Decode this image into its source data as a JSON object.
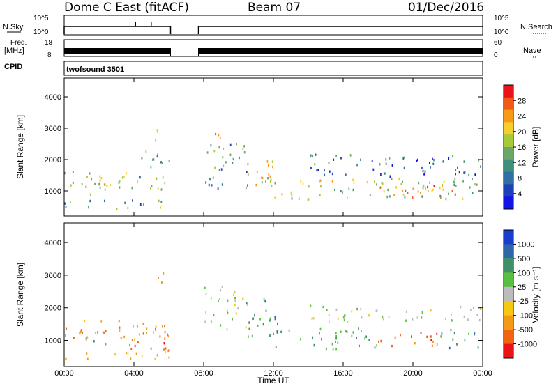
{
  "header": {
    "station": "Dome C East (fitACF)",
    "beam": "Beam 07",
    "date": "01/Dec/2016"
  },
  "noise_panel": {
    "left_label": "N.Sky",
    "right_label": "N.Search",
    "tick_top": "10^5",
    "tick_bottom": "10^0",
    "line_color": "#000000",
    "spikes_hours": [
      4.1,
      5.0
    ]
  },
  "freq_panel": {
    "label_top": "Freq.",
    "label_units": "[MHz]",
    "left_ticks": [
      "18",
      "8"
    ],
    "right_ticks": [
      "60",
      "0"
    ],
    "right_label": "Nave"
  },
  "cpid": {
    "label": "CPID",
    "value": "twofsound 3501"
  },
  "chart_data": [
    {
      "type": "heatmap",
      "parameter": "power",
      "ylabel": "Slant Range [km]",
      "ylim": [
        200,
        4600
      ],
      "yticks": [
        1000,
        2000,
        3000,
        4000
      ],
      "xlim": [
        0,
        24
      ],
      "xticks": [
        0,
        4,
        8,
        12,
        16,
        20,
        24
      ],
      "data_gap_hours": [
        6.1,
        7.7
      ],
      "colorbar": {
        "label": "Power [dB]",
        "ticks": [
          "28",
          "24",
          "20",
          "16",
          "12",
          "8",
          "4"
        ],
        "colors": [
          "#e8141a",
          "#f05a14",
          "#f79a18",
          "#f5cf2a",
          "#a8c93a",
          "#6aa86a",
          "#3f8f7a",
          "#2f6fa3",
          "#1f3fb8",
          "#1414e6"
        ]
      },
      "echo_regions": [
        {
          "t0": 0.0,
          "t1": 6.1,
          "r0": 1050,
          "r1": 1650,
          "level": 0.5
        },
        {
          "t0": 0.0,
          "t1": 6.1,
          "r0": 450,
          "r1": 750,
          "level": 0.4
        },
        {
          "t0": 0.8,
          "t1": 2.5,
          "r0": 800,
          "r1": 1300,
          "level": 0.65
        },
        {
          "t0": 4.0,
          "t1": 6.1,
          "r0": 1700,
          "r1": 2300,
          "level": 0.35
        },
        {
          "t0": 5.2,
          "t1": 5.7,
          "r0": 2400,
          "r1": 3200,
          "level": 0.75
        },
        {
          "t0": 8.0,
          "t1": 10.5,
          "r0": 1100,
          "r1": 2600,
          "level": 0.3
        },
        {
          "t0": 8.6,
          "t1": 9.1,
          "r0": 2300,
          "r1": 2900,
          "level": 0.8
        },
        {
          "t0": 10.3,
          "t1": 12.0,
          "r0": 1200,
          "r1": 2300,
          "level": 0.7
        },
        {
          "t0": 11.5,
          "t1": 24.0,
          "r0": 750,
          "r1": 1450,
          "level": 0.55
        },
        {
          "t0": 18.0,
          "t1": 22.5,
          "r0": 800,
          "r1": 1200,
          "level": 0.85
        },
        {
          "t0": 14.0,
          "t1": 24.0,
          "r0": 1500,
          "r1": 2200,
          "level": 0.2
        }
      ]
    },
    {
      "type": "heatmap",
      "parameter": "velocity",
      "ylabel": "Slant Range [km]",
      "xlabel": "Time UT",
      "ylim": [
        200,
        4600
      ],
      "yticks": [
        1000,
        2000,
        3000,
        4000
      ],
      "xlim": [
        0,
        24
      ],
      "xticks": [
        0,
        4,
        8,
        12,
        16,
        20,
        24
      ],
      "xtick_labels": [
        "00:00",
        "04:00",
        "08:00",
        "12:00",
        "16:00",
        "20:00",
        "00:00"
      ],
      "data_gap_hours": [
        6.1,
        7.7
      ],
      "colorbar": {
        "label": "Velocity [m s⁻¹]",
        "ticks": [
          "1000",
          "500",
          "100",
          "25",
          "-25",
          "-100",
          "-500",
          "-1000"
        ],
        "colors": [
          "#1a3ccf",
          "#2f66a8",
          "#3f8f6a",
          "#58c040",
          "#bcbcbc",
          "#f5c814",
          "#f59a14",
          "#f06414",
          "#e8141a"
        ]
      },
      "echo_regions": [
        {
          "t0": 0.0,
          "t1": 6.1,
          "r0": 1050,
          "r1": 1650,
          "level": -0.55
        },
        {
          "t0": 0.0,
          "t1": 6.1,
          "r0": 450,
          "r1": 750,
          "level": -0.35
        },
        {
          "t0": 0.8,
          "t1": 2.5,
          "r0": 800,
          "r1": 1300,
          "level": 0.3
        },
        {
          "t0": 3.6,
          "t1": 6.1,
          "r0": 700,
          "r1": 1400,
          "level": -0.75
        },
        {
          "t0": 5.2,
          "t1": 5.7,
          "r0": 2400,
          "r1": 3200,
          "level": -0.6
        },
        {
          "t0": 8.0,
          "t1": 10.5,
          "r0": 1300,
          "r1": 2700,
          "level": 0.0
        },
        {
          "t0": 10.3,
          "t1": 12.5,
          "r0": 1100,
          "r1": 2300,
          "level": 0.45
        },
        {
          "t0": 12.0,
          "t1": 18.0,
          "r0": 750,
          "r1": 1400,
          "level": 0.4
        },
        {
          "t0": 18.0,
          "t1": 21.5,
          "r0": 800,
          "r1": 1300,
          "level": -0.75
        },
        {
          "t0": 21.5,
          "t1": 24.0,
          "r0": 800,
          "r1": 1400,
          "level": 0.45
        },
        {
          "t0": 14.0,
          "t1": 24.0,
          "r0": 1600,
          "r1": 2100,
          "level": 0.0
        }
      ]
    }
  ]
}
